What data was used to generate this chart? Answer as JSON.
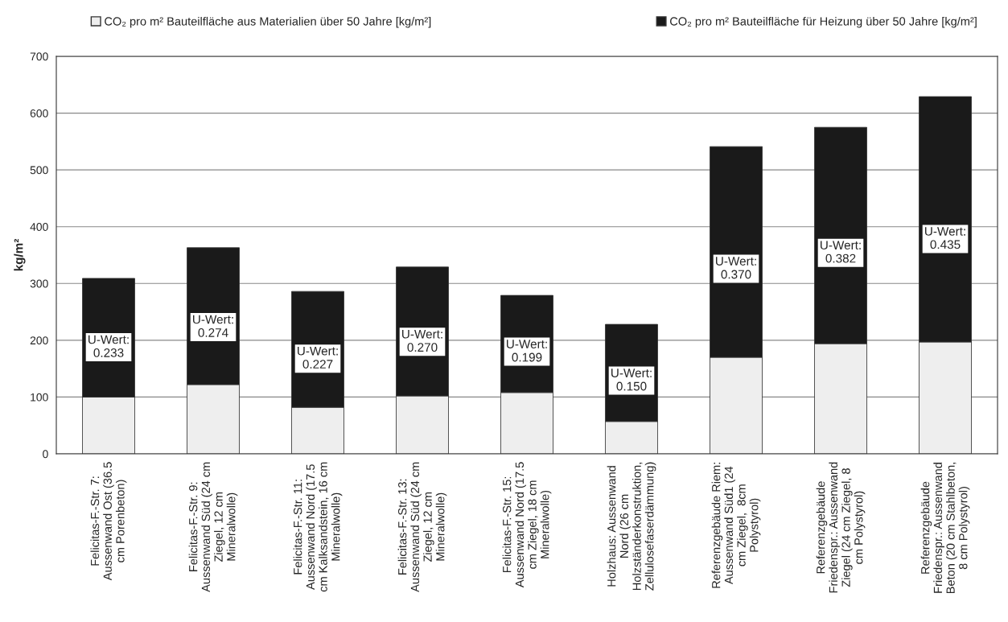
{
  "chart_data": {
    "type": "bar",
    "stacked": true,
    "ylabel": "kg/m²",
    "categories": [
      "Felicitas-F.-Str. 7:\nAussenwand Ost (36.5\ncm Porenbeton)",
      "Felicitas-F.-Str. 9:\nAussenwand Süd (24 cm\nZiegel, 12 cm\nMineralwolle)",
      "Felicitas-F.-Str. 11:\nAussenwand Nord (17.5\ncm Kalksandstein, 16 cm\nMineralwolle)",
      "Felicitas-F.-Str. 13:\nAussenwand Süd (24 cm\nZiegel, 12 cm\nMineralwolle)",
      "Felicitas-F.-Str. 15:\nAussenwand Nord (17.5\ncm Ziegel, 18 cm\nMineralwolle)",
      "Holzhaus: Aussenwand\nNord (26 cm\nHolzständerkonstruktion,\nZellulosefaserdämmung)",
      "Referenzgebäude Riem:\nAussenwand Süd1 (24\ncm Ziegel,  8cm\nPolystyrol)",
      "Referenzgebäude\nFriedenspr.: Aussenwand\nZiegel (24 cm Ziegel, 8\ncm Polystyrol)",
      "Referenzgebäude\nFriedenspr.: Aussenwand\nBeton (20 cm Stahlbeton,\n8 cm Polystyrol)"
    ],
    "series": [
      {
        "name": "CO₂ pro m² Bauteilfläche aus Materialien über 50 Jahre [kg/m²]",
        "color": "#eeeeee",
        "values": [
          100,
          122,
          82,
          102,
          108,
          57,
          170,
          194,
          197
        ]
      },
      {
        "name": "CO₂ pro m² Bauteilfläche für Heizung über 50 Jahre [kg/m²]",
        "color": "#1a1a1a",
        "values": [
          209,
          241,
          204,
          227,
          171,
          171,
          371,
          381,
          432
        ]
      }
    ],
    "ylim": [
      0,
      700
    ],
    "yticks": [
      0,
      100,
      200,
      300,
      400,
      500,
      600,
      700
    ],
    "grid": "y",
    "legend": "top",
    "annotations": [
      "U-Wert:\n0.233",
      "U-Wert:\n0.274",
      "U-Wert:\n0.227",
      "U-Wert:\n0.270",
      "U-Wert:\n0.199",
      "U-Wert:\n0.150",
      "U-Wert:\n0.370",
      "U-Wert:\n0.382",
      "U-Wert:\n0.435"
    ]
  }
}
